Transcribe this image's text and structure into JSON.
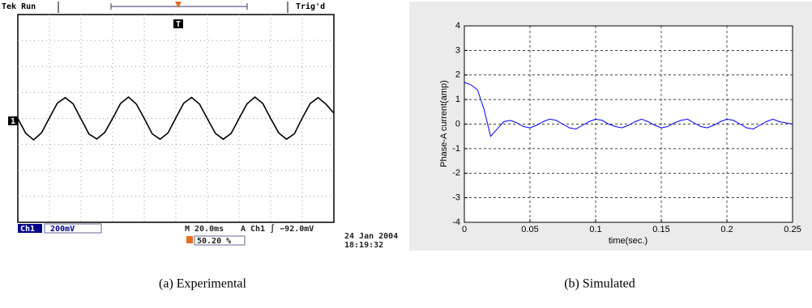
{
  "chart_data": [
    {
      "type": "line",
      "status_left": "Tek Run",
      "status_right": "Trig'd",
      "trigger_marker": "T",
      "channel_marker": "1",
      "channel": "Ch1",
      "scale": "200mV",
      "timebase": "M 20.0ms",
      "trigger": "A  Ch1  ∫ −92.0mV",
      "position": "50.20 %",
      "date": "24 Jan  2004",
      "time": "18:19:32",
      "caption": "(a) Experimental",
      "xlim": [
        0,
        200
      ],
      "ylim": [
        -800,
        800
      ],
      "color": "#000000",
      "x": [
        0,
        5,
        10,
        15,
        20,
        25,
        30,
        35,
        40,
        45,
        50,
        55,
        60,
        65,
        70,
        75,
        80,
        85,
        90,
        95,
        100,
        105,
        110,
        115,
        120,
        125,
        130,
        135,
        140,
        145,
        150,
        155,
        160,
        165,
        170,
        175,
        180,
        185,
        190,
        195,
        200
      ],
      "values": [
        0,
        -115,
        -165,
        -110,
        5,
        118,
        160,
        112,
        -5,
        -120,
        -158,
        -108,
        0,
        115,
        165,
        110,
        0,
        -118,
        -160,
        -112,
        5,
        118,
        162,
        110,
        -3,
        -115,
        -160,
        -115,
        0,
        112,
        165,
        115,
        0,
        -110,
        -160,
        -118,
        3,
        115,
        160,
        110,
        40
      ]
    },
    {
      "type": "line",
      "xlabel": "time(sec.)",
      "ylabel": "Phase-A current(amp)",
      "caption": "(b) Simulated",
      "xlim": [
        0,
        0.25
      ],
      "ylim": [
        -4,
        4
      ],
      "xticks": [
        0,
        0.05,
        0.1,
        0.15,
        0.2,
        0.25
      ],
      "yticks": [
        -4,
        -3,
        -2,
        -1,
        0,
        1,
        2,
        3,
        4
      ],
      "grid": true,
      "color": "#0000ff",
      "x": [
        0,
        0.005,
        0.01,
        0.015,
        0.02,
        0.025,
        0.03,
        0.035,
        0.04,
        0.045,
        0.05,
        0.055,
        0.06,
        0.065,
        0.07,
        0.075,
        0.08,
        0.085,
        0.09,
        0.095,
        0.1,
        0.105,
        0.11,
        0.115,
        0.12,
        0.125,
        0.13,
        0.135,
        0.14,
        0.145,
        0.15,
        0.155,
        0.16,
        0.165,
        0.17,
        0.175,
        0.18,
        0.185,
        0.19,
        0.195,
        0.2,
        0.205,
        0.21,
        0.215,
        0.22,
        0.225,
        0.23,
        0.235,
        0.24,
        0.245,
        0.25
      ],
      "values": [
        1.7,
        1.6,
        1.4,
        0.6,
        -0.5,
        -0.2,
        0.1,
        0.15,
        0.05,
        -0.1,
        -0.15,
        -0.05,
        0.1,
        0.2,
        0.15,
        0.0,
        -0.15,
        -0.2,
        -0.05,
        0.1,
        0.2,
        0.15,
        0.0,
        -0.1,
        -0.15,
        -0.05,
        0.1,
        0.2,
        0.1,
        -0.05,
        -0.15,
        -0.1,
        0.05,
        0.15,
        0.2,
        0.05,
        -0.1,
        -0.15,
        -0.05,
        0.1,
        0.2,
        0.15,
        0.0,
        -0.15,
        -0.2,
        -0.05,
        0.1,
        0.2,
        0.1,
        0.05,
        0.0
      ]
    }
  ]
}
